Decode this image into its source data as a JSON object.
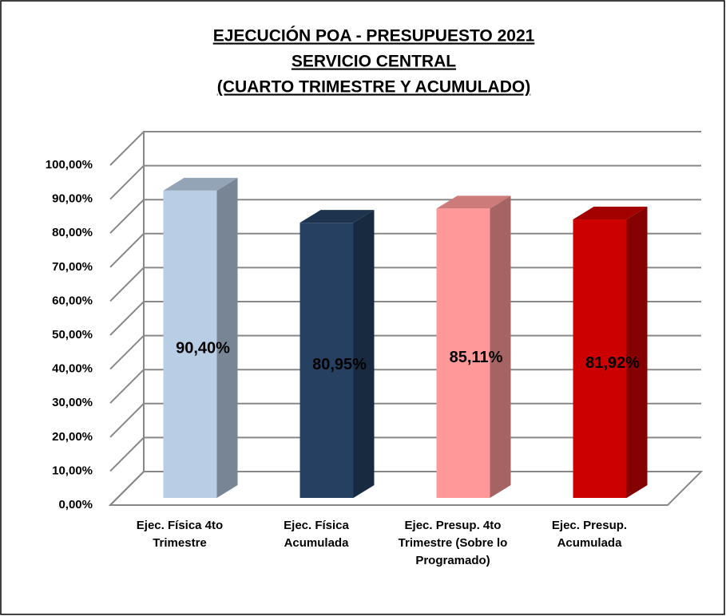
{
  "chart_data": {
    "type": "bar3d",
    "title": [
      "EJECUCIÓN POA - PRESUPUESTO 2021",
      "SERVICIO CENTRAL",
      "(CUARTO TRIMESTRE Y ACUMULADO)"
    ],
    "categories": [
      "Ejec. Física 4to Trimestre",
      "Ejec. Física Acumulada",
      "Ejec. Presup. 4to Trimestre (Sobre lo Programado)",
      "Ejec. Presup. Acumulada"
    ],
    "values": [
      90.4,
      80.95,
      85.11,
      81.92
    ],
    "value_labels": [
      "90,40%",
      "80,95%",
      "85,11%",
      "81,92%"
    ],
    "colors": [
      "#b9cde5",
      "#254061",
      "#ff9999",
      "#cc0000"
    ],
    "ylim": [
      0,
      100
    ],
    "yticks": [
      {
        "value": 0,
        "label": "0,00%"
      },
      {
        "value": 10,
        "label": "10,00%"
      },
      {
        "value": 20,
        "label": "20,00%"
      },
      {
        "value": 30,
        "label": "30,00%"
      },
      {
        "value": 40,
        "label": "40,00%"
      },
      {
        "value": 50,
        "label": "50,00%"
      },
      {
        "value": 60,
        "label": "60,00%"
      },
      {
        "value": 70,
        "label": "70,00%"
      },
      {
        "value": 80,
        "label": "80,00%"
      },
      {
        "value": 90,
        "label": "90,00%"
      },
      {
        "value": 100,
        "label": "100,00%"
      }
    ],
    "grid": true
  }
}
